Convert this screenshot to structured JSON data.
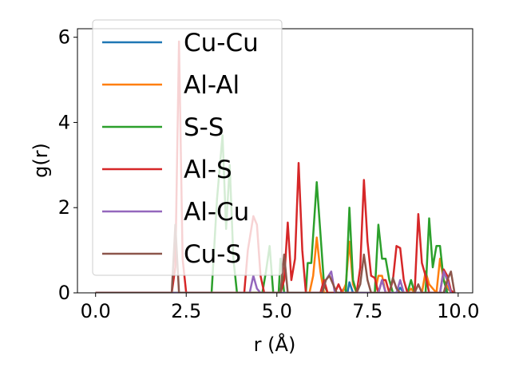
{
  "chart_data": {
    "type": "line",
    "title": "",
    "xlabel": "r (Å)",
    "ylabel": "g(r)",
    "xlim": [
      -0.5,
      10.4
    ],
    "ylim": [
      0,
      6.2
    ],
    "xticks": [
      0.0,
      2.5,
      5.0,
      7.5,
      10.0
    ],
    "xtick_labels": [
      "0.0",
      "2.5",
      "5.0",
      "7.5",
      "10.0"
    ],
    "yticks": [
      0,
      2,
      4,
      6
    ],
    "ytick_labels": [
      "0",
      "2",
      "4",
      "6"
    ],
    "grid": false,
    "legend_position": "top-left",
    "series": [
      {
        "name": "Cu-Cu",
        "color": "#1f77b4",
        "points": [
          [
            0,
            0
          ],
          [
            6.75,
            0
          ],
          [
            6.85,
            0.1
          ],
          [
            6.95,
            0
          ],
          [
            7.0,
            0.25
          ],
          [
            7.1,
            0
          ],
          [
            8.3,
            0
          ],
          [
            8.4,
            0.12
          ],
          [
            8.5,
            0
          ],
          [
            9.6,
            0
          ],
          [
            9.7,
            0.1
          ],
          [
            9.85,
            0
          ]
        ]
      },
      {
        "name": "Al-Al",
        "color": "#ff7f0e",
        "points": [
          [
            0,
            0
          ],
          [
            5.9,
            0
          ],
          [
            6.0,
            0.4
          ],
          [
            6.1,
            1.3
          ],
          [
            6.2,
            0.5
          ],
          [
            6.3,
            0
          ],
          [
            6.8,
            0
          ],
          [
            6.9,
            0.2
          ],
          [
            7.0,
            1.2
          ],
          [
            7.1,
            0.2
          ],
          [
            7.2,
            0
          ],
          [
            7.7,
            0
          ],
          [
            7.8,
            0.4
          ],
          [
            7.9,
            0.4
          ],
          [
            8.0,
            0
          ],
          [
            8.6,
            0
          ],
          [
            8.7,
            0.1
          ],
          [
            8.8,
            0
          ],
          [
            9.0,
            0
          ],
          [
            9.1,
            0.5
          ],
          [
            9.2,
            0.2
          ],
          [
            9.4,
            0
          ],
          [
            9.5,
            0.8
          ],
          [
            9.6,
            0.3
          ],
          [
            9.8,
            0
          ]
        ]
      },
      {
        "name": "S-S",
        "color": "#2ca02c",
        "points": [
          [
            0,
            0
          ],
          [
            3.2,
            0
          ],
          [
            3.35,
            2.2
          ],
          [
            3.5,
            3.7
          ],
          [
            3.6,
            1.5
          ],
          [
            3.7,
            3.0
          ],
          [
            3.8,
            0.8
          ],
          [
            3.9,
            0
          ],
          [
            4.6,
            0
          ],
          [
            4.7,
            0.5
          ],
          [
            4.8,
            1.1
          ],
          [
            4.9,
            0
          ],
          [
            5.05,
            0
          ],
          [
            5.1,
            0.8
          ],
          [
            5.2,
            0
          ],
          [
            5.8,
            0
          ],
          [
            5.85,
            0.7
          ],
          [
            5.95,
            0.7
          ],
          [
            6.1,
            2.6
          ],
          [
            6.2,
            1.4
          ],
          [
            6.3,
            0.2
          ],
          [
            6.4,
            0
          ],
          [
            6.9,
            0
          ],
          [
            7.0,
            2.0
          ],
          [
            7.1,
            0.3
          ],
          [
            7.2,
            0
          ],
          [
            7.7,
            0
          ],
          [
            7.8,
            1.6
          ],
          [
            7.9,
            0.8
          ],
          [
            8.0,
            0.8
          ],
          [
            8.1,
            0.3
          ],
          [
            8.2,
            0
          ],
          [
            8.6,
            0
          ],
          [
            8.7,
            0.3
          ],
          [
            8.8,
            0
          ],
          [
            9.1,
            0
          ],
          [
            9.2,
            1.75
          ],
          [
            9.3,
            0.6
          ],
          [
            9.4,
            1.1
          ],
          [
            9.5,
            1.1
          ],
          [
            9.6,
            0.3
          ],
          [
            9.7,
            0
          ]
        ]
      },
      {
        "name": "Al-S",
        "color": "#d62728",
        "points": [
          [
            0,
            0
          ],
          [
            2.1,
            0
          ],
          [
            2.2,
            0.6
          ],
          [
            2.3,
            5.9
          ],
          [
            2.4,
            0.8
          ],
          [
            2.5,
            0
          ],
          [
            4.1,
            0
          ],
          [
            4.2,
            1.0
          ],
          [
            4.35,
            1.8
          ],
          [
            4.45,
            1.6
          ],
          [
            4.55,
            0.4
          ],
          [
            4.65,
            0
          ],
          [
            5.1,
            0
          ],
          [
            5.2,
            0.3
          ],
          [
            5.3,
            1.65
          ],
          [
            5.4,
            0.3
          ],
          [
            5.5,
            0.8
          ],
          [
            5.6,
            3.05
          ],
          [
            5.7,
            1.0
          ],
          [
            5.8,
            0
          ],
          [
            6.2,
            0
          ],
          [
            6.3,
            0.3
          ],
          [
            6.4,
            0
          ],
          [
            6.6,
            0
          ],
          [
            6.7,
            0.2
          ],
          [
            6.8,
            0
          ],
          [
            7.2,
            0
          ],
          [
            7.3,
            0.6
          ],
          [
            7.4,
            2.65
          ],
          [
            7.5,
            1.2
          ],
          [
            7.6,
            0.4
          ],
          [
            7.7,
            0.35
          ],
          [
            7.8,
            0
          ],
          [
            7.9,
            0.3
          ],
          [
            8.0,
            0.3
          ],
          [
            8.1,
            0
          ],
          [
            8.2,
            0.3
          ],
          [
            8.3,
            1.1
          ],
          [
            8.4,
            1.05
          ],
          [
            8.5,
            0.3
          ],
          [
            8.6,
            0
          ],
          [
            8.8,
            0
          ],
          [
            8.9,
            1.85
          ],
          [
            9.0,
            0.7
          ],
          [
            9.1,
            0.4
          ],
          [
            9.2,
            0
          ],
          [
            9.5,
            0
          ],
          [
            9.6,
            0.55
          ],
          [
            9.7,
            0.4
          ],
          [
            9.8,
            0.05
          ],
          [
            9.9,
            0
          ]
        ]
      },
      {
        "name": "Al-Cu",
        "color": "#9467bd",
        "points": [
          [
            0,
            0
          ],
          [
            4.25,
            0
          ],
          [
            4.35,
            0.4
          ],
          [
            4.45,
            0.1
          ],
          [
            4.55,
            0
          ],
          [
            6.25,
            0
          ],
          [
            6.35,
            0.3
          ],
          [
            6.5,
            0.5
          ],
          [
            6.6,
            0
          ],
          [
            7.8,
            0
          ],
          [
            7.9,
            0.3
          ],
          [
            8.0,
            0
          ],
          [
            8.3,
            0
          ],
          [
            8.4,
            0.3
          ],
          [
            8.5,
            0
          ],
          [
            9.5,
            0
          ],
          [
            9.6,
            0.5
          ],
          [
            9.7,
            0.3
          ],
          [
            9.8,
            0
          ]
        ]
      },
      {
        "name": "Cu-S",
        "color": "#8c564b",
        "points": [
          [
            0,
            0
          ],
          [
            2.1,
            0
          ],
          [
            2.2,
            1.6
          ],
          [
            2.3,
            0
          ],
          [
            5.1,
            0
          ],
          [
            5.2,
            0.9
          ],
          [
            5.3,
            0
          ],
          [
            6.25,
            0
          ],
          [
            6.35,
            0.3
          ],
          [
            6.45,
            0.4
          ],
          [
            6.55,
            0.2
          ],
          [
            6.65,
            0
          ],
          [
            7.2,
            0
          ],
          [
            7.3,
            0.2
          ],
          [
            7.4,
            0.9
          ],
          [
            7.5,
            0.3
          ],
          [
            7.6,
            0
          ],
          [
            8.1,
            0
          ],
          [
            8.2,
            0.35
          ],
          [
            8.3,
            0.1
          ],
          [
            8.4,
            0
          ],
          [
            8.8,
            0
          ],
          [
            8.9,
            0.2
          ],
          [
            9.0,
            0
          ],
          [
            9.6,
            0
          ],
          [
            9.7,
            0.3
          ],
          [
            9.8,
            0.5
          ],
          [
            9.9,
            0
          ]
        ]
      }
    ]
  }
}
